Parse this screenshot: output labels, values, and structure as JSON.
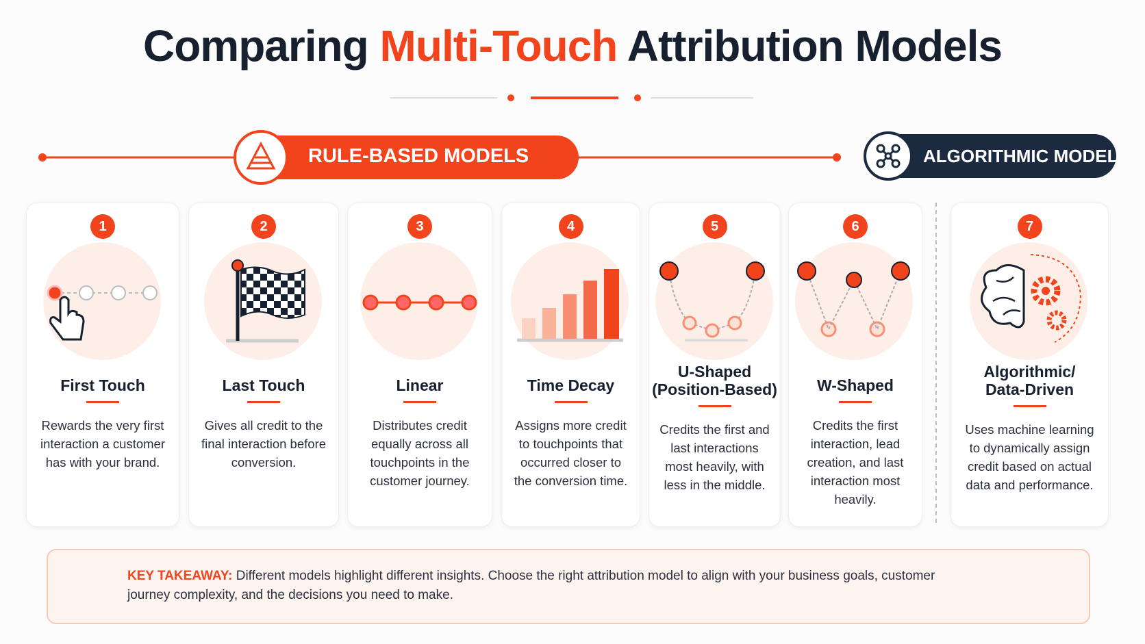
{
  "title": {
    "prefix": "Comparing",
    "highlight": "Multi-Touch",
    "suffix": "Attribution Models"
  },
  "groups": {
    "rule_based": "RULE-BASED MODELS",
    "algorithmic": "ALGORITHMIC MODEL"
  },
  "cards": [
    {
      "number": 1,
      "title": [
        "First Touch"
      ],
      "description": "Rewards the very first interaction a customer has with your brand."
    },
    {
      "number": 2,
      "title": [
        "Last Touch"
      ],
      "description": "Gives all credit to the final interaction before conversion."
    },
    {
      "number": 3,
      "title": [
        "Linear"
      ],
      "description": "Distributes credit equally across all touchpoints in the customer journey."
    },
    {
      "number": 4,
      "title": [
        "Time Decay"
      ],
      "description": "Assigns more credit to touchpoints that occurred closer to the conversion time."
    },
    {
      "number": 5,
      "title": [
        "U-Shaped",
        "(Position-Based)"
      ],
      "description": "Credits the first and last interactions most heavily, with less in the middle."
    },
    {
      "number": 6,
      "title": [
        "W-Shaped"
      ],
      "description": "Credits the first interaction, lead creation, and last interaction most heavily."
    },
    {
      "number": 7,
      "title": [
        "Algorithmic/",
        "Data-Driven"
      ],
      "description": "Uses machine learning to dynamically assign credit based on actual data and performance."
    }
  ],
  "takeaway": {
    "label": "KEY TAKEAWAY:",
    "text": "Different models highlight different insights. Choose the right attribution model to align with your business goals, customer journey complexity, and the decisions you need to make."
  }
}
